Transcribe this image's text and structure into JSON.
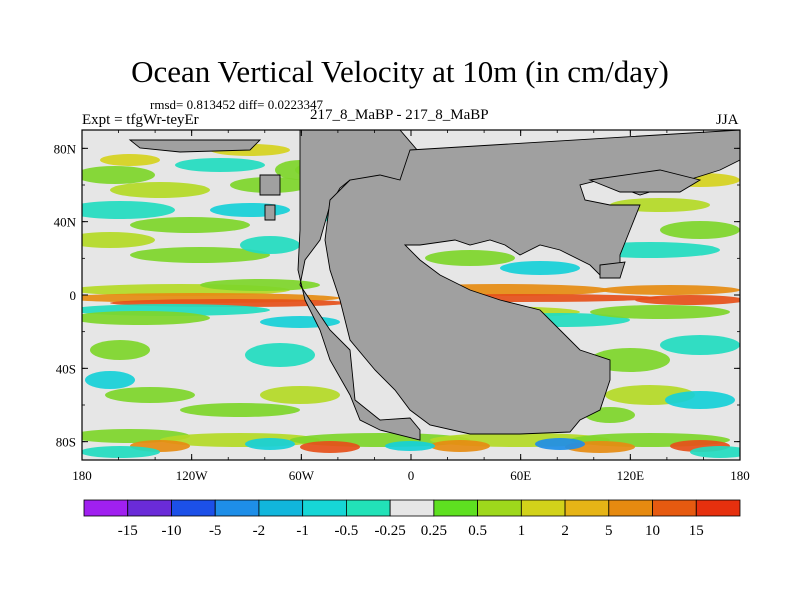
{
  "figure": {
    "title": "Ocean Vertical Velocity at 10m (in cm/day)",
    "stats": "rmsd= 0.813452 diff= 0.0223347",
    "experiment": "Expt = tfgWr-teyEr",
    "case_label": "217_8_MaBP - 217_8_MaBP",
    "season": "JJA"
  },
  "axes": {
    "x_ticks": [
      "180",
      "120W",
      "60W",
      "0",
      "60E",
      "120E",
      "180"
    ],
    "y_ticks": [
      "80N",
      "40N",
      "0",
      "40S",
      "80S"
    ],
    "x_values": [
      -180,
      -120,
      -60,
      0,
      60,
      120,
      180
    ],
    "y_values": [
      80,
      40,
      0,
      -40,
      -80
    ]
  },
  "colorbar": {
    "labels": [
      "-15",
      "-10",
      "-5",
      "-2",
      "-1",
      "-0.5",
      "-0.25",
      "0.25",
      "0.5",
      "1",
      "2",
      "5",
      "10",
      "15"
    ],
    "colors": [
      "#a020f0",
      "#6a2bd8",
      "#1c50e8",
      "#1e8ee8",
      "#11b6dc",
      "#16d6d6",
      "#22e2b8",
      "#e6e6e6",
      "#5ee020",
      "#9ed81c",
      "#d2d21a",
      "#e6b416",
      "#e68a10",
      "#e65a10",
      "#e6300e"
    ]
  },
  "map_colors": {
    "land": "#a0a0a0",
    "coast": "#000000",
    "near_zero": "#e6e6e6",
    "green": "#7ed62a",
    "lime": "#b4da26",
    "yellow": "#d6d21e",
    "orange": "#e68c12",
    "red_orange": "#e6501a",
    "cyan": "#16d0d8",
    "teal": "#22dcc0",
    "blue": "#1e8ee8"
  }
}
